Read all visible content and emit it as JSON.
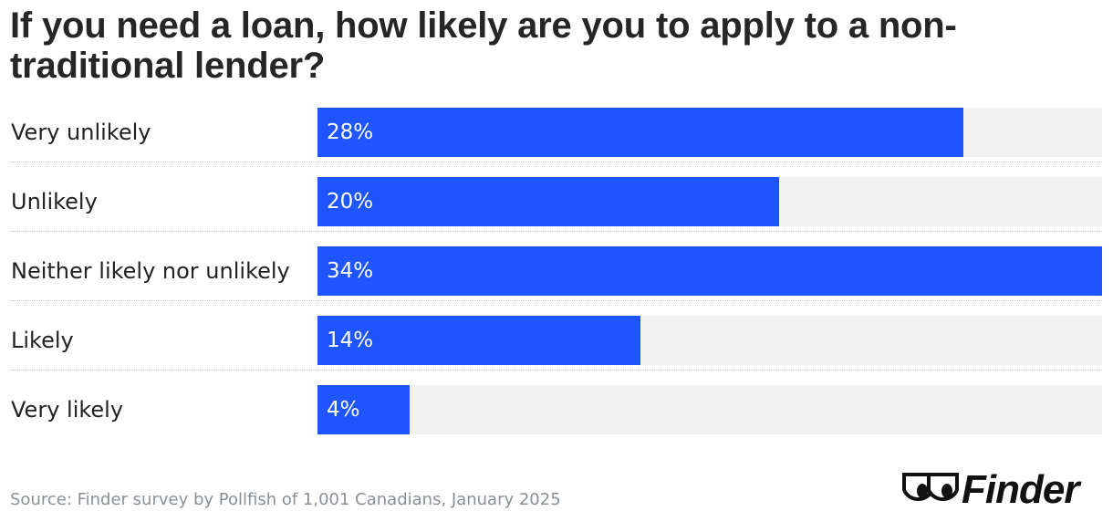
{
  "chart_data": {
    "type": "bar",
    "orientation": "horizontal",
    "title": "If you need a loan, how likely are you to apply to a non-traditional lender?",
    "categories": [
      "Very unlikely",
      "Unlikely",
      "Neither likely nor unlikely",
      "Likely",
      "Very likely"
    ],
    "values": [
      28,
      20,
      34,
      14,
      4
    ],
    "value_labels": [
      "28%",
      "20%",
      "34%",
      "14%",
      "4%"
    ],
    "unit": "%",
    "xlim": [
      0,
      34
    ],
    "grid": false,
    "bar_color": "#1f55ff",
    "track_color": "#f2f2f2"
  },
  "source": "Source: Finder survey by Pollfish of 1,001 Canadians, January 2025",
  "logo": {
    "text": "Finder",
    "icon": "finder-eyes-icon"
  }
}
